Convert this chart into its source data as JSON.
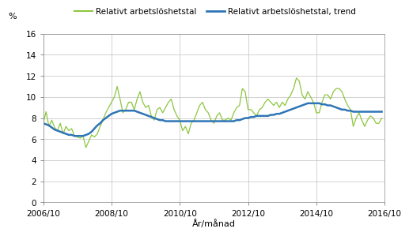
{
  "ylabel": "%",
  "xlabel": "År/månad",
  "legend1": "Relativt arbetslöshetstal",
  "legend2": "Relativt arbetslöshetstal, trend",
  "line1_color": "#8dc63f",
  "line2_color": "#2e75b6",
  "ylim": [
    0,
    16
  ],
  "yticks": [
    0,
    2,
    4,
    6,
    8,
    10,
    12,
    14,
    16
  ],
  "xtick_labels": [
    "2006/10",
    "2008/10",
    "2010/10",
    "2012/10",
    "2014/10",
    "2016/10"
  ],
  "background_color": "#ffffff",
  "grid_color": "#c0c0c0",
  "actual": [
    7.5,
    8.6,
    7.2,
    7.8,
    7.1,
    6.8,
    7.5,
    6.5,
    7.2,
    6.8,
    7.0,
    6.3,
    6.2,
    6.1,
    6.3,
    5.2,
    5.8,
    6.4,
    6.2,
    6.5,
    7.2,
    7.8,
    8.5,
    9.0,
    9.5,
    10.0,
    11.0,
    9.8,
    8.5,
    8.8,
    9.5,
    9.5,
    8.8,
    9.8,
    10.5,
    9.5,
    9.0,
    9.2,
    8.2,
    7.8,
    8.8,
    9.0,
    8.5,
    9.0,
    9.5,
    9.8,
    8.8,
    8.2,
    7.8,
    6.8,
    7.2,
    6.5,
    7.5,
    7.8,
    8.5,
    9.2,
    9.5,
    8.8,
    8.5,
    7.8,
    7.5,
    8.2,
    8.5,
    7.8,
    7.8,
    8.0,
    7.8,
    8.5,
    9.0,
    9.2,
    10.8,
    10.5,
    8.8,
    8.8,
    8.5,
    8.2,
    8.8,
    9.0,
    9.5,
    9.8,
    9.5,
    9.2,
    9.5,
    9.0,
    9.5,
    9.2,
    9.8,
    10.2,
    10.8,
    11.8,
    11.5,
    10.2,
    9.8,
    10.5,
    10.0,
    9.5,
    8.5,
    8.5,
    9.5,
    10.2,
    10.2,
    9.8,
    10.5,
    10.8,
    10.8,
    10.5,
    9.8,
    9.2,
    8.8,
    7.2,
    8.0,
    8.5,
    7.8,
    7.2,
    7.8,
    8.2,
    8.0,
    7.5,
    7.5,
    8.0
  ],
  "trend": [
    7.5,
    7.4,
    7.3,
    7.1,
    6.9,
    6.8,
    6.7,
    6.6,
    6.5,
    6.4,
    6.4,
    6.3,
    6.3,
    6.3,
    6.3,
    6.4,
    6.5,
    6.7,
    7.0,
    7.3,
    7.5,
    7.8,
    8.0,
    8.2,
    8.4,
    8.5,
    8.6,
    8.7,
    8.7,
    8.7,
    8.7,
    8.7,
    8.7,
    8.6,
    8.5,
    8.4,
    8.3,
    8.2,
    8.1,
    8.0,
    7.9,
    7.8,
    7.8,
    7.7,
    7.7,
    7.7,
    7.7,
    7.7,
    7.7,
    7.7,
    7.7,
    7.7,
    7.7,
    7.7,
    7.7,
    7.7,
    7.7,
    7.7,
    7.7,
    7.7,
    7.7,
    7.7,
    7.7,
    7.7,
    7.7,
    7.7,
    7.7,
    7.7,
    7.8,
    7.8,
    7.9,
    8.0,
    8.0,
    8.1,
    8.1,
    8.2,
    8.2,
    8.2,
    8.2,
    8.2,
    8.3,
    8.3,
    8.4,
    8.4,
    8.5,
    8.6,
    8.7,
    8.8,
    8.9,
    9.0,
    9.1,
    9.2,
    9.3,
    9.4,
    9.4,
    9.4,
    9.4,
    9.4,
    9.3,
    9.3,
    9.2,
    9.2,
    9.1,
    9.0,
    8.9,
    8.8,
    8.8,
    8.7,
    8.7,
    8.6,
    8.6,
    8.6,
    8.6,
    8.6,
    8.6,
    8.6,
    8.6,
    8.6,
    8.6,
    8.6
  ]
}
